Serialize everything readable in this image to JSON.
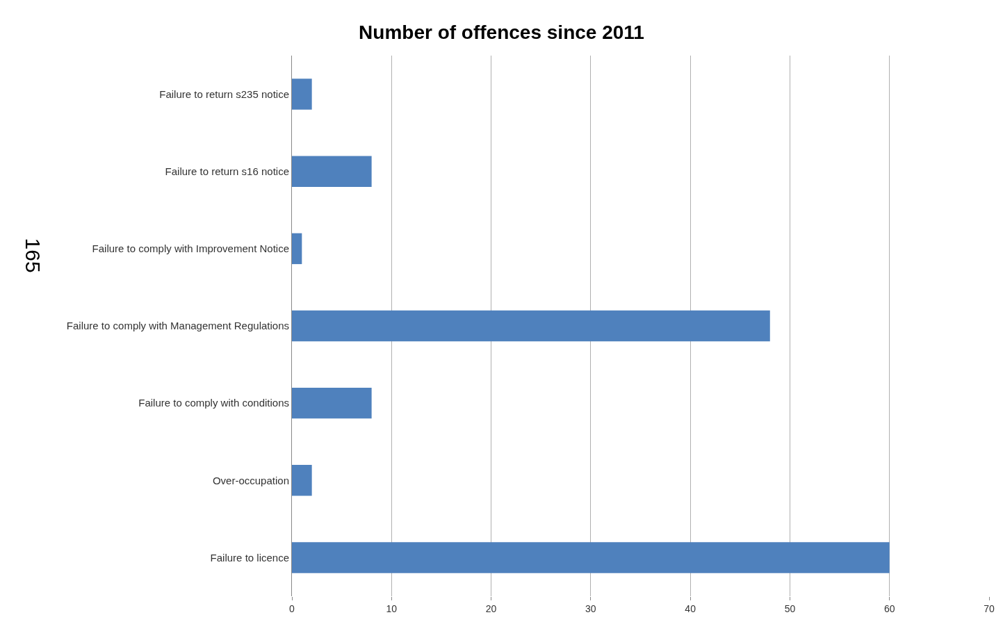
{
  "chart_data": {
    "type": "bar",
    "orientation": "horizontal",
    "title": "Number of offences since 2011",
    "categories": [
      "Failure to return s235 notice",
      "Failure to return s16 notice",
      "Failure to comply with Improvement Notice",
      "Failure to comply with Management Regulations",
      "Failure to comply with conditions",
      "Over-occupation",
      "Failure to licence"
    ],
    "values": [
      2,
      8,
      1,
      48,
      8,
      2,
      60
    ],
    "color": "#4f81bd",
    "xlim": [
      0,
      70
    ],
    "xticks": [
      0,
      10,
      20,
      30,
      40,
      50,
      60,
      70
    ],
    "grid": "x",
    "annotations": [
      "165"
    ]
  }
}
